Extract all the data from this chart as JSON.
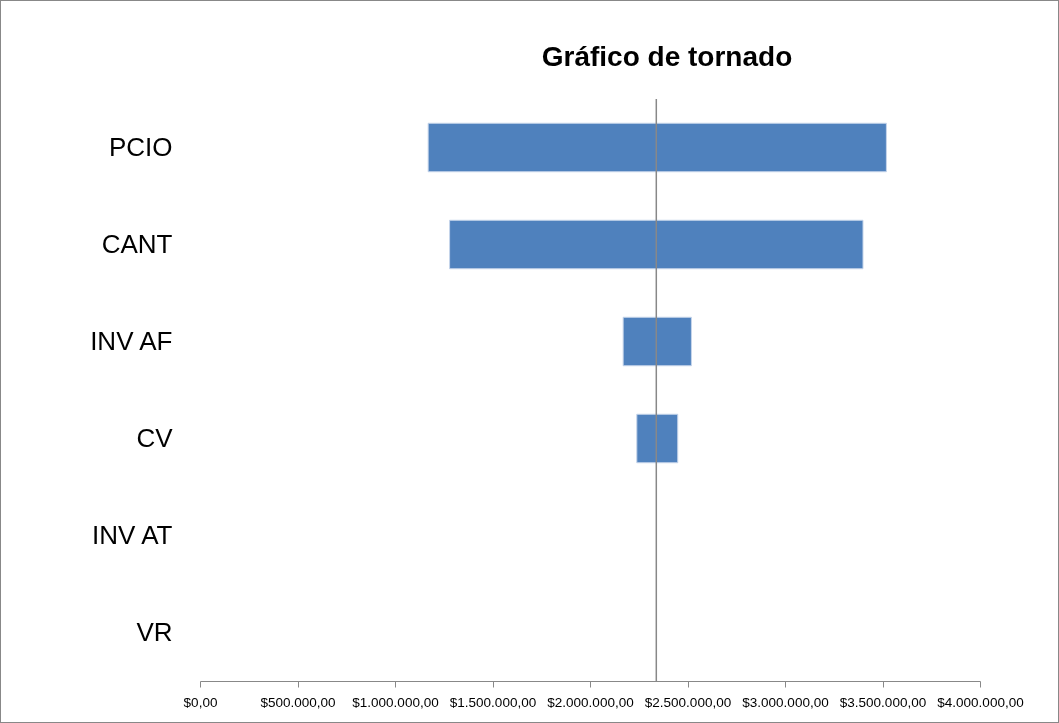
{
  "chart_data": {
    "type": "bar",
    "title": "Gráfico de tornado",
    "orientation": "horizontal",
    "categories": [
      "PCIO",
      "CANT",
      "INV AF",
      "CV",
      "INV AT",
      "VR"
    ],
    "base": [
      1170000,
      1280000,
      2170000,
      2240000,
      null,
      null
    ],
    "values": [
      2350000,
      2120000,
      350000,
      210000,
      null,
      null
    ],
    "color": "#4f81bd",
    "xlim": [
      0,
      4000000
    ],
    "xticks": [
      {
        "value": 0,
        "label": "$0,00"
      },
      {
        "value": 500000,
        "label": "$500.000,00"
      },
      {
        "value": 1000000,
        "label": "$1.000.000,00"
      },
      {
        "value": 1500000,
        "label": "$1.500.000,00"
      },
      {
        "value": 2000000,
        "label": "$2.000.000,00"
      },
      {
        "value": 2500000,
        "label": "$2.500.000,00"
      },
      {
        "value": 3000000,
        "label": "$3.000.000,00"
      },
      {
        "value": 3500000,
        "label": "$3.500.000,00"
      },
      {
        "value": 4000000,
        "label": "$4.000.000,00"
      }
    ],
    "ref_lines": [
      {
        "axis": "x",
        "value": 2340000,
        "color": "#888888"
      }
    ],
    "grid": false
  }
}
